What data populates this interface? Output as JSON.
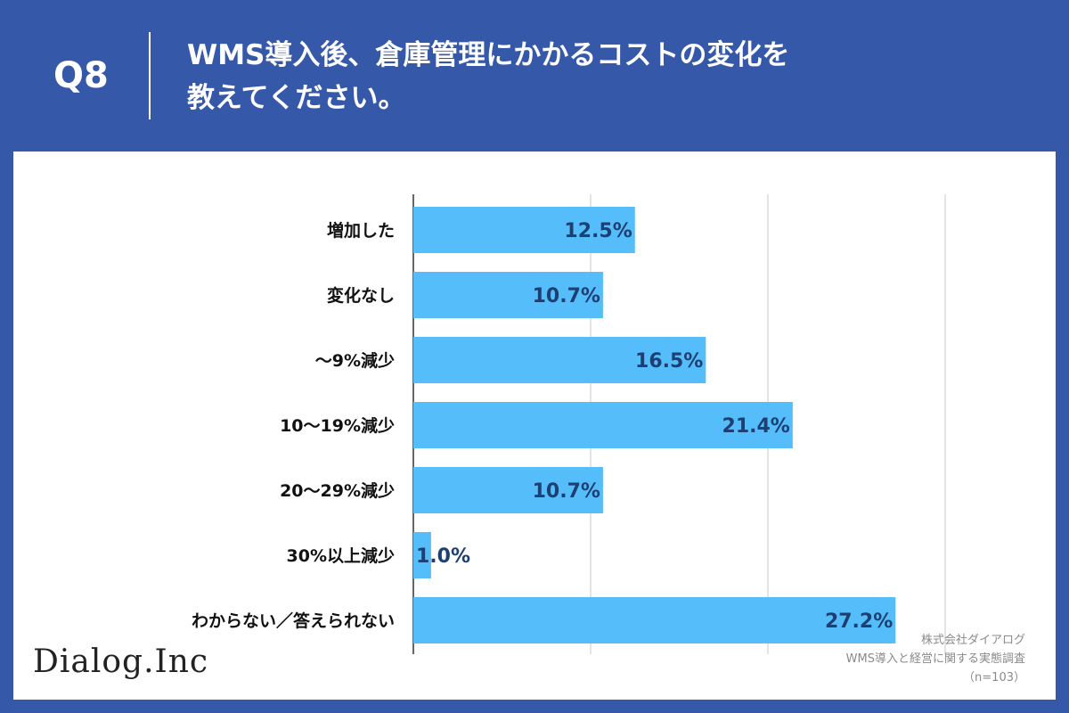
{
  "header": {
    "question_number": "Q8",
    "question_line1": "WMS導入後、倉庫管理にかかるコストの変化を",
    "question_line2": "教えてください。"
  },
  "footer": {
    "logo": "Dialog.Inc",
    "source_company": "株式会社ダイアログ",
    "source_survey": "WMS導入と経営に関する実態調査",
    "sample_size": "（n=103）"
  },
  "colors": {
    "background": "#3558a8",
    "bar": "#56bdfb",
    "value_text": "#1d3f72",
    "grid": "#c8c8c8"
  },
  "chart_data": {
    "type": "bar",
    "orientation": "horizontal",
    "categories": [
      "増加した",
      "変化なし",
      "～9%減少",
      "10～19%減少",
      "20～29%減少",
      "30%以上減少",
      "わからない／答えられない"
    ],
    "values": [
      12.5,
      10.7,
      16.5,
      21.4,
      10.7,
      1.0,
      27.2
    ],
    "value_labels": [
      "12.5%",
      "10.7%",
      "16.5%",
      "21.4%",
      "10.7%",
      "1.0%",
      "27.2%"
    ],
    "xlim": [
      0,
      30
    ],
    "grid": true,
    "legend": "none"
  }
}
